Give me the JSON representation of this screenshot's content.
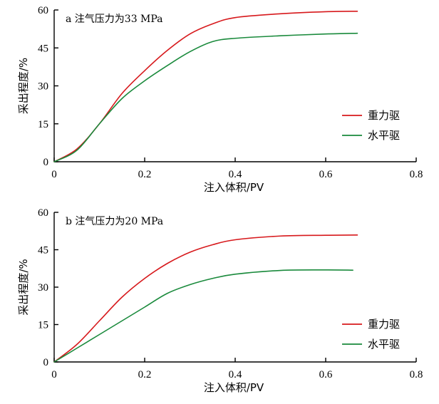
{
  "chart_data": [
    {
      "type": "line",
      "title": "a 注气压力为33 MPa",
      "xlabel": "注入体积/PV",
      "ylabel": "采出程度/%",
      "xlim": [
        0,
        0.8
      ],
      "ylim": [
        0,
        60
      ],
      "xticks": [
        "0",
        "0.2",
        "0.4",
        "0.6",
        "0.8"
      ],
      "yticks": [
        "0",
        "15",
        "30",
        "45",
        "60"
      ],
      "grid": false,
      "legend_position": "right",
      "series": [
        {
          "name": "重力驱",
          "color": "#d7191c",
          "x": [
            0,
            0.05,
            0.1,
            0.15,
            0.2,
            0.25,
            0.3,
            0.35,
            0.4,
            0.5,
            0.6,
            0.67
          ],
          "y": [
            0,
            5,
            15,
            27,
            36,
            44,
            50.5,
            54.5,
            57,
            58.5,
            59.3,
            59.5
          ]
        },
        {
          "name": "水平驱",
          "color": "#1a8a3c",
          "x": [
            0,
            0.05,
            0.1,
            0.15,
            0.2,
            0.25,
            0.3,
            0.35,
            0.4,
            0.5,
            0.6,
            0.67
          ],
          "y": [
            0,
            4.5,
            15,
            25,
            32,
            38,
            43.5,
            47.5,
            48.8,
            49.8,
            50.5,
            50.8
          ]
        }
      ]
    },
    {
      "type": "line",
      "title": "b 注气压力为20 MPa",
      "xlabel": "注入体积/PV",
      "ylabel": "采出程度/%",
      "xlim": [
        0,
        0.8
      ],
      "ylim": [
        0,
        60
      ],
      "xticks": [
        "0",
        "0.2",
        "0.4",
        "0.6",
        "0.8"
      ],
      "yticks": [
        "0",
        "15",
        "30",
        "45",
        "60"
      ],
      "grid": false,
      "legend_position": "right",
      "series": [
        {
          "name": "重力驱",
          "color": "#d7191c",
          "x": [
            0,
            0.05,
            0.1,
            0.15,
            0.2,
            0.25,
            0.3,
            0.35,
            0.4,
            0.5,
            0.6,
            0.67
          ],
          "y": [
            0,
            7,
            16.5,
            26,
            33.5,
            39.5,
            44,
            47,
            49,
            50.5,
            50.8,
            50.9
          ]
        },
        {
          "name": "水平驱",
          "color": "#1a8a3c",
          "x": [
            0,
            0.05,
            0.1,
            0.15,
            0.2,
            0.25,
            0.3,
            0.35,
            0.4,
            0.5,
            0.6,
            0.66
          ],
          "y": [
            0,
            5.5,
            11,
            16.5,
            22,
            27.5,
            31,
            33.5,
            35.2,
            36.7,
            36.9,
            36.8
          ]
        }
      ]
    }
  ]
}
